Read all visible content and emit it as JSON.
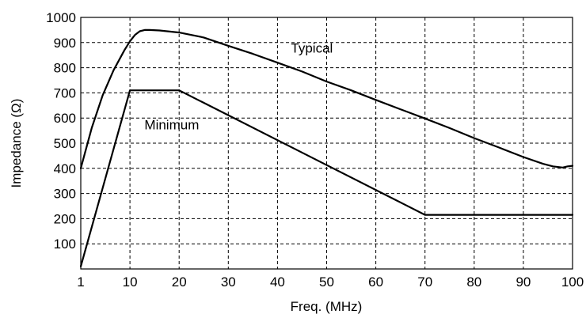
{
  "chart_data": {
    "type": "line",
    "title": "",
    "xlabel": "Freq. (MHz)",
    "ylabel": "Impedance (Ω)",
    "xlim": [
      1,
      100
    ],
    "ylim": [
      0,
      1000
    ],
    "x_ticks": [
      1,
      10,
      20,
      30,
      40,
      50,
      60,
      70,
      80,
      90,
      100
    ],
    "y_ticks": [
      100,
      200,
      300,
      400,
      500,
      600,
      700,
      800,
      900,
      1000
    ],
    "grid": true,
    "series": [
      {
        "name": "Typical",
        "x": [
          1,
          3,
          5,
          7,
          9,
          10,
          11,
          12,
          13,
          14,
          16,
          20,
          25,
          30,
          35,
          40,
          45,
          50,
          55,
          60,
          65,
          70,
          75,
          80,
          85,
          90,
          94,
          96,
          98,
          99,
          100
        ],
        "y": [
          400,
          560,
          690,
          790,
          870,
          905,
          930,
          945,
          950,
          950,
          948,
          940,
          920,
          887,
          855,
          820,
          785,
          745,
          710,
          672,
          635,
          598,
          560,
          520,
          483,
          445,
          418,
          408,
          403,
          408,
          410
        ]
      },
      {
        "name": "Minimum",
        "x": [
          1,
          10,
          20,
          70,
          100
        ],
        "y": [
          10,
          710,
          710,
          215,
          215
        ]
      }
    ],
    "annotations": [
      {
        "text": "Typical",
        "x": 47,
        "y": 860
      },
      {
        "text": "Minimum",
        "x": 18.5,
        "y": 555
      }
    ]
  }
}
